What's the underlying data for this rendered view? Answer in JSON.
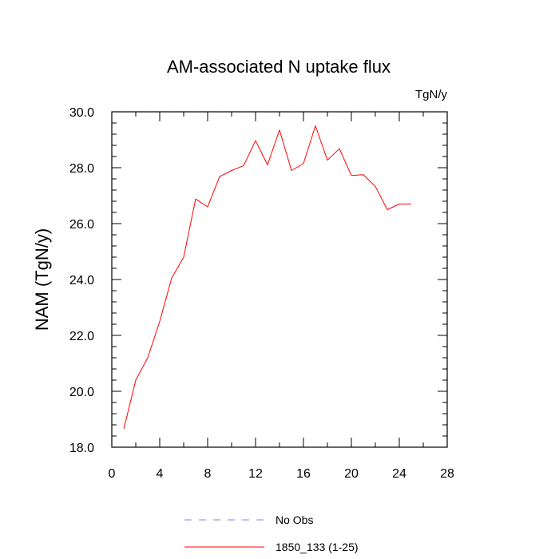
{
  "chart_data": {
    "type": "line",
    "title": "AM-associated N uptake flux",
    "units_label": "TgN/y",
    "xlabel": "",
    "ylabel": "NAM  (TgN/y)",
    "xlim": [
      0,
      28
    ],
    "ylim": [
      18.0,
      30.0
    ],
    "x_ticks": [
      "0",
      "4",
      "8",
      "12",
      "16",
      "20",
      "24",
      "28"
    ],
    "y_ticks": [
      "18.0",
      "20.0",
      "22.0",
      "24.0",
      "26.0",
      "28.0",
      "30.0"
    ],
    "grid": false,
    "legend_placement": "bottom",
    "legend": [
      {
        "label": "No Obs",
        "style": "dashed",
        "color": "#8080ff"
      },
      {
        "label": "1850_133 (1-25)",
        "style": "solid",
        "color": "#ff0000"
      }
    ],
    "series": [
      {
        "name": "1850_133 (1-25)",
        "color": "#ff0000",
        "x": [
          1,
          2,
          3,
          4,
          5,
          6,
          7,
          8,
          9,
          10,
          11,
          12,
          13,
          14,
          15,
          16,
          17,
          18,
          19,
          20,
          21,
          22,
          23,
          24,
          25
        ],
        "y": [
          18.65,
          20.4,
          21.2,
          22.5,
          24.05,
          24.8,
          26.88,
          26.6,
          27.68,
          27.9,
          28.07,
          28.97,
          28.1,
          29.35,
          27.9,
          28.15,
          29.5,
          28.27,
          28.68,
          27.72,
          27.75,
          27.33,
          26.5,
          26.7,
          26.7
        ]
      }
    ]
  }
}
